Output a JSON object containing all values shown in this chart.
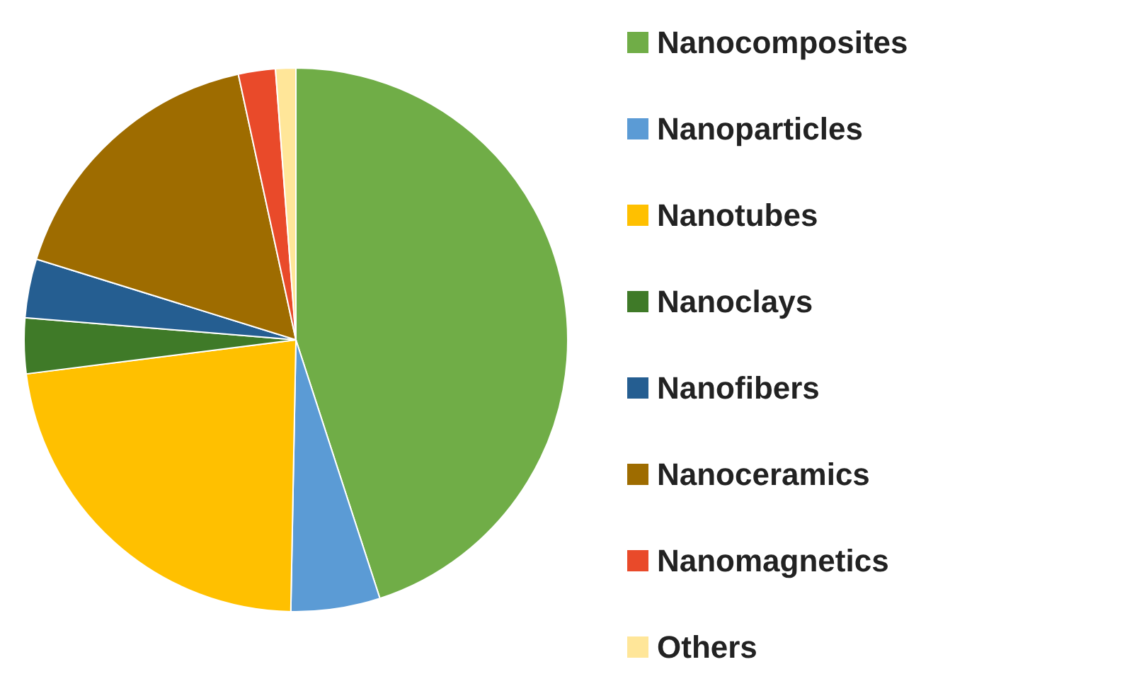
{
  "chart_data": {
    "type": "pie",
    "categories": [
      "Nanocomposites",
      "Nanoparticles",
      "Nanotubes",
      "Nanoclays",
      "Nanofibers",
      "Nanoceramics",
      "Nanomagnetics",
      "Others"
    ],
    "values": [
      45.0,
      5.3,
      22.7,
      3.3,
      3.5,
      16.8,
      2.2,
      1.2
    ],
    "colors": [
      "#70ad47",
      "#5b9bd5",
      "#ffc000",
      "#3f7a28",
      "#255e91",
      "#9e6c00",
      "#e94a2a",
      "#ffe699"
    ],
    "legend": "right"
  }
}
